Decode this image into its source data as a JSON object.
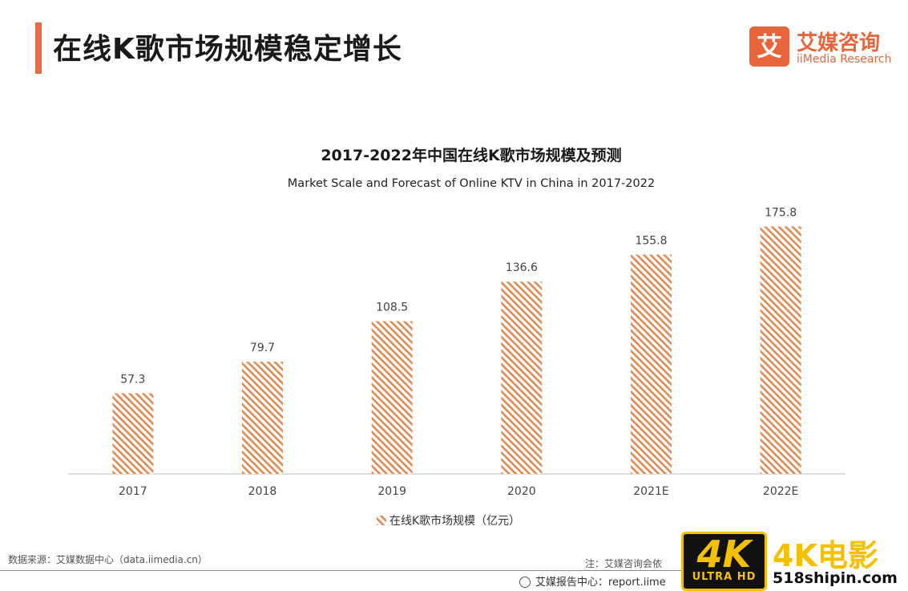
{
  "header": {
    "title": "在线K歌市场规模稳定增长"
  },
  "brand": {
    "logo_mark": "艾",
    "name_cn": "艾媒咨询",
    "name_en": "iiMedia Research",
    "color": "#e8643a"
  },
  "chart_data": {
    "type": "bar",
    "title": "2017-2022年中国在线K歌市场规模及预测",
    "subtitle": "Market Scale and Forecast of Online KTV in China in 2017-2022",
    "categories": [
      "2017",
      "2018",
      "2019",
      "2020",
      "2021E",
      "2022E"
    ],
    "series": [
      {
        "name": "在线K歌市场规模（亿元）",
        "values": [
          57.3,
          79.7,
          108.5,
          136.6,
          155.8,
          175.8
        ],
        "color": "#e08a52",
        "pattern": "diagonal-hatch"
      }
    ],
    "data_labels": [
      "57.3",
      "79.7",
      "108.5",
      "136.6",
      "155.8",
      "175.8"
    ],
    "ylim": [
      0,
      180
    ],
    "grid": false,
    "legend_position": "bottom"
  },
  "footer": {
    "source": "数据来源：艾媒数据中心（data.iimedia.cn）",
    "note": "注：艾媒咨询会依",
    "report_center": "艾媒报告中心：report.iime"
  },
  "watermark": {
    "badge": "4K",
    "badge_sub": "ULTRA HD",
    "title": "4K电影",
    "site": "518shipin.com"
  }
}
